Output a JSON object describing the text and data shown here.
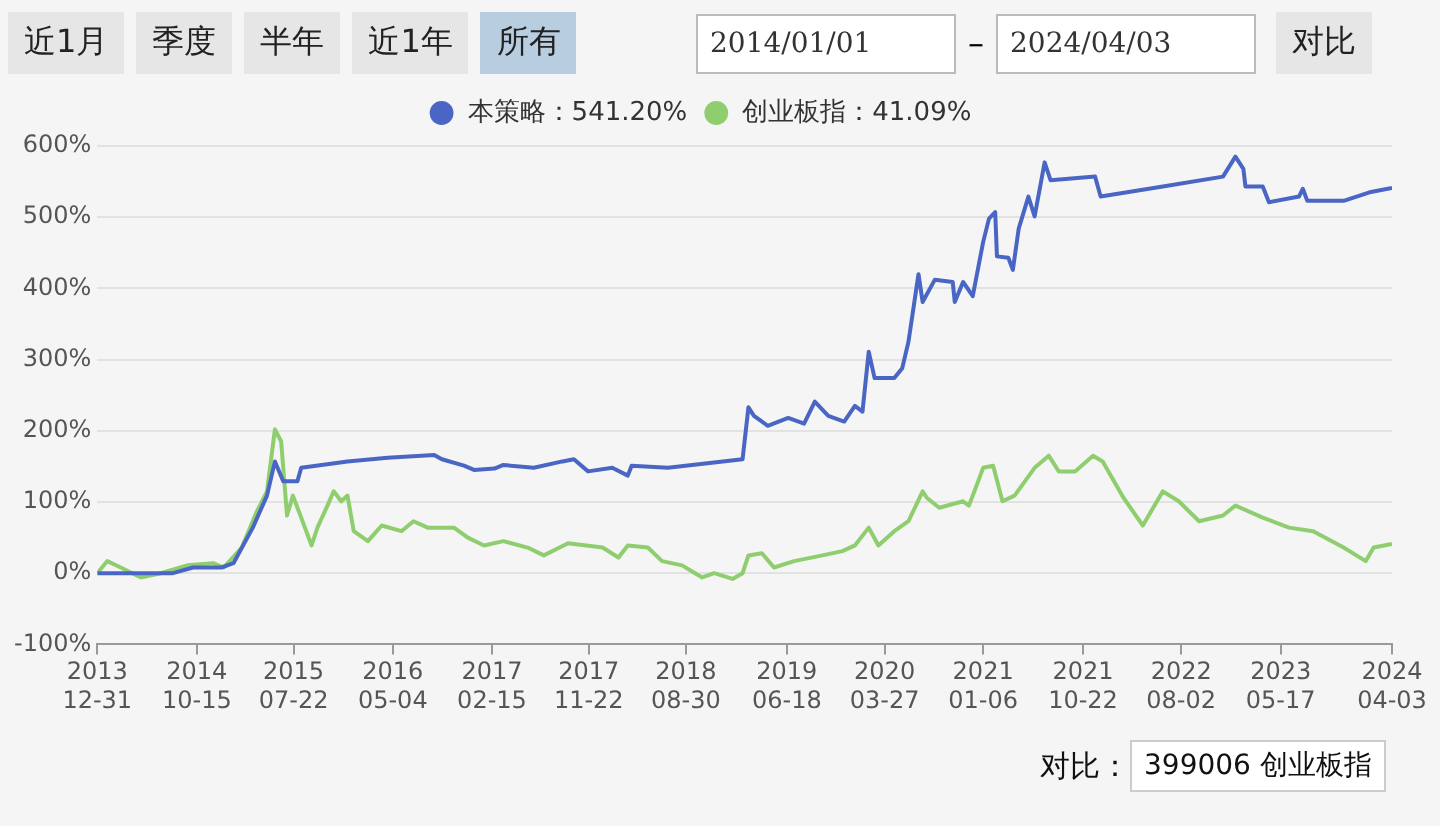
{
  "chart_data": {
    "type": "line",
    "legend": "top",
    "grid": "y",
    "marker": "none",
    "line_style": "solid",
    "annotations": [
      "近1月",
      "季度",
      "半年",
      "近1年",
      "所有",
      "2014/01/01",
      "–",
      "2024/04/03",
      "对比",
      "对比：",
      "399006 创业板指"
    ],
    "xlim": [
      "2013-12-31",
      "2024-04-03"
    ],
    "xticks": [
      {
        "value": "2013-12-31",
        "label": "2013\n12-31"
      },
      {
        "value": "2014-10-15",
        "label": "2014\n10-15"
      },
      {
        "value": "2015-07-22",
        "label": "2015\n07-22"
      },
      {
        "value": "2016-05-04",
        "label": "2016\n05-04"
      },
      {
        "value": "2017-02-15",
        "label": "2017\n02-15"
      },
      {
        "value": "2017-11-22",
        "label": "2017\n11-22"
      },
      {
        "value": "2018-08-30",
        "label": "2018\n08-30"
      },
      {
        "value": "2019-06-18",
        "label": "2019\n06-18"
      },
      {
        "value": "2020-03-27",
        "label": "2020\n03-27"
      },
      {
        "value": "2021-01-06",
        "label": "2021\n01-06"
      },
      {
        "value": "2021-10-22",
        "label": "2021\n10-22"
      },
      {
        "value": "2022-08-02",
        "label": "2022\n08-02"
      },
      {
        "value": "2023-05-17",
        "label": "2023\n05-17"
      },
      {
        "value": "2024-04-03",
        "label": "2024\n04-03"
      }
    ],
    "ylim": [
      -100,
      600
    ],
    "yticks": [
      {
        "value": -100,
        "label": "-100%"
      },
      {
        "value": 0,
        "label": "0%"
      },
      {
        "value": 100,
        "label": "100%"
      },
      {
        "value": 200,
        "label": "200%"
      },
      {
        "value": 300,
        "label": "300%"
      },
      {
        "value": 400,
        "label": "400%"
      },
      {
        "value": 500,
        "label": "500%"
      },
      {
        "value": 600,
        "label": "600%"
      }
    ],
    "series": [
      {
        "name": "本策略：541.20%",
        "color": "#4a66c4",
        "x": [
          "2013-12-31",
          "2014-08-07",
          "2014-10-04",
          "2014-12-25",
          "2015-01-29",
          "2015-03-26",
          "2015-05-06",
          "2015-05-29",
          "2015-06-22",
          "2015-08-02",
          "2015-08-13",
          "2015-12-25",
          "2016-04-19",
          "2016-09-01",
          "2016-09-23",
          "2016-11-26",
          "2016-12-25",
          "2017-02-22",
          "2017-03-20",
          "2017-06-16",
          "2017-09-07",
          "2017-10-10",
          "2017-11-20",
          "2018-01-29",
          "2018-03-15",
          "2018-03-26",
          "2018-07-09",
          "2019-02-10",
          "2019-02-27",
          "2019-03-15",
          "2019-04-24",
          "2019-06-22",
          "2019-08-07",
          "2019-09-07",
          "2019-10-16",
          "2019-12-01",
          "2020-01-01",
          "2020-01-23",
          "2020-02-10",
          "2020-02-27",
          "2020-04-24",
          "2020-05-17",
          "2020-06-04",
          "2020-07-03",
          "2020-07-15",
          "2020-08-19",
          "2020-10-10",
          "2020-10-16",
          "2020-11-09",
          "2020-12-07",
          "2021-01-06",
          "2021-01-23",
          "2021-02-10",
          "2021-02-15",
          "2021-03-20",
          "2021-04-02",
          "2021-04-19",
          "2021-05-17",
          "2021-06-04",
          "2021-07-03",
          "2021-07-20",
          "2021-11-26",
          "2021-12-12",
          "2022-06-10",
          "2022-12-01",
          "2023-01-06",
          "2023-01-29",
          "2023-02-04",
          "2023-03-26",
          "2023-04-13",
          "2023-07-09",
          "2023-07-20",
          "2023-08-02",
          "2023-11-15",
          "2024-01-29",
          "2024-04-03"
        ],
        "values": [
          0,
          0,
          8,
          8,
          14,
          64,
          109,
          157,
          129,
          129,
          148,
          157,
          162,
          166,
          160,
          151,
          145,
          147,
          152,
          148,
          157,
          160,
          143,
          148,
          137,
          151,
          148,
          160,
          233,
          221,
          207,
          218,
          210,
          241,
          221,
          213,
          235,
          227,
          311,
          274,
          274,
          288,
          325,
          420,
          381,
          412,
          409,
          381,
          409,
          389,
          465,
          498,
          507,
          445,
          443,
          426,
          484,
          529,
          501,
          577,
          552,
          557,
          529,
          543,
          557,
          585,
          568,
          543,
          543,
          521,
          529,
          540,
          523,
          523,
          535,
          541.2
        ]
      },
      {
        "name": "创业板指：41.09%",
        "color": "#8fce6e",
        "x": [
          "2013-12-31",
          "2014-01-29",
          "2014-03-09",
          "2014-05-06",
          "2014-07-03",
          "2014-09-17",
          "2014-12-01",
          "2015-01-01",
          "2015-02-22",
          "2015-04-07",
          "2015-05-06",
          "2015-05-29",
          "2015-06-16",
          "2015-07-03",
          "2015-07-20",
          "2015-08-13",
          "2015-09-12",
          "2015-09-29",
          "2015-10-28",
          "2015-11-15",
          "2015-12-07",
          "2015-12-25",
          "2016-01-12",
          "2016-02-22",
          "2016-04-02",
          "2016-05-29",
          "2016-07-03",
          "2016-08-13",
          "2016-10-28",
          "2016-12-07",
          "2017-01-23",
          "2017-03-20",
          "2017-05-29",
          "2017-07-15",
          "2017-09-23",
          "2018-01-01",
          "2018-02-16",
          "2018-03-15",
          "2018-05-12",
          "2018-06-22",
          "2018-08-19",
          "2018-10-16",
          "2018-11-20",
          "2019-01-12",
          "2019-02-10",
          "2019-02-27",
          "2019-04-07",
          "2019-05-12",
          "2019-07-09",
          "2019-09-29",
          "2019-11-26",
          "2020-01-01",
          "2020-02-10",
          "2020-03-09",
          "2020-04-24",
          "2020-06-04",
          "2020-07-15",
          "2020-07-27",
          "2020-09-01",
          "2020-11-09",
          "2020-11-26",
          "2020-12-18",
          "2021-01-06",
          "2021-02-04",
          "2021-03-03",
          "2021-04-07",
          "2021-06-04",
          "2021-07-15",
          "2021-08-13",
          "2021-09-29",
          "2021-11-20",
          "2021-12-18",
          "2022-02-16",
          "2022-04-13",
          "2022-06-10",
          "2022-07-26",
          "2022-09-23",
          "2022-12-01",
          "2023-01-06",
          "2023-03-26",
          "2023-06-10",
          "2023-08-19",
          "2023-11-15",
          "2024-01-18",
          "2024-02-10",
          "2024-04-03"
        ],
        "values": [
          0,
          17,
          8,
          -6,
          0,
          11,
          14,
          8,
          36,
          87,
          115,
          202,
          185,
          81,
          109,
          78,
          39,
          64,
          95,
          115,
          101,
          109,
          59,
          45,
          67,
          59,
          73,
          64,
          64,
          50,
          39,
          45,
          36,
          25,
          42,
          36,
          22,
          39,
          36,
          17,
          11,
          -6,
          0,
          -8,
          0,
          25,
          28,
          8,
          17,
          25,
          31,
          39,
          64,
          39,
          59,
          73,
          115,
          106,
          92,
          101,
          95,
          123,
          148,
          151,
          101,
          109,
          148,
          165,
          143,
          143,
          165,
          157,
          106,
          67,
          115,
          101,
          73,
          81,
          95,
          78,
          64,
          59,
          36,
          17,
          36,
          41.09
        ]
      }
    ]
  }
}
